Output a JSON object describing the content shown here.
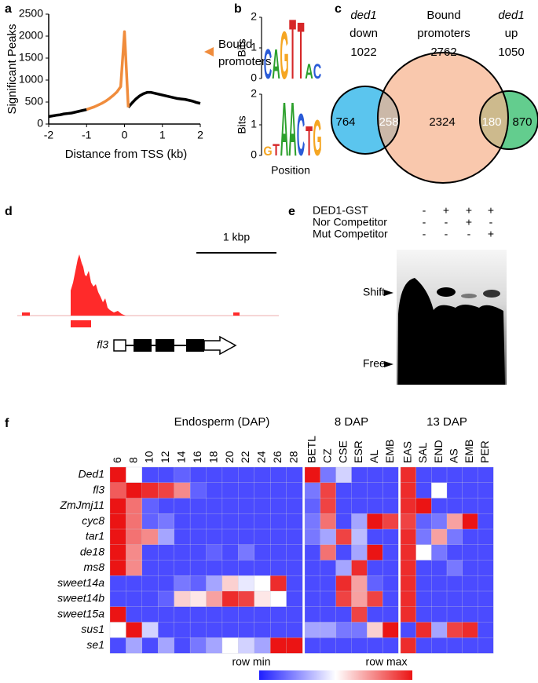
{
  "panel_labels": [
    "a",
    "b",
    "c",
    "d",
    "e",
    "f"
  ],
  "chart_data": [
    {
      "type": "line",
      "ylabel": "Significant Peaks",
      "xlabel": "Distance from TSS (kb)",
      "annotation": [
        "Bound",
        "promoters"
      ],
      "x": [
        -2.0,
        -1.9,
        -1.8,
        -1.7,
        -1.6,
        -1.5,
        -1.4,
        -1.3,
        -1.2,
        -1.1,
        -1.0,
        -0.9,
        -0.8,
        -0.7,
        -0.6,
        -0.5,
        -0.4,
        -0.3,
        -0.2,
        -0.1,
        0.0,
        0.1,
        0.2,
        0.3,
        0.4,
        0.5,
        0.6,
        0.7,
        0.8,
        0.9,
        1.0,
        1.1,
        1.2,
        1.3,
        1.4,
        1.5,
        1.6,
        1.7,
        1.8,
        1.9,
        2.0
      ],
      "series": [
        {
          "color": "#000000",
          "values": [
            170,
            185,
            200,
            210,
            230,
            240,
            250,
            270,
            290,
            310,
            330,
            null,
            null,
            null,
            null,
            null,
            null,
            null,
            null,
            null,
            null,
            380,
            480,
            570,
            640,
            690,
            720,
            720,
            700,
            680,
            660,
            640,
            620,
            600,
            580,
            570,
            560,
            540,
            520,
            490,
            470
          ]
        },
        {
          "color": "#f08c3c",
          "values": [
            null,
            null,
            null,
            null,
            null,
            null,
            null,
            null,
            null,
            null,
            330,
            360,
            390,
            430,
            470,
            520,
            580,
            650,
            730,
            850,
            2100,
            380,
            null,
            null,
            null,
            null,
            null,
            null,
            null,
            null,
            null,
            null,
            null,
            null,
            null,
            null,
            null,
            null,
            null,
            null,
            null
          ]
        }
      ],
      "xlim": [
        -2,
        2
      ],
      "xticks": [
        -2,
        -1,
        0,
        1,
        2
      ],
      "ylim": [
        0,
        2500
      ],
      "yticks": [
        0,
        500,
        1000,
        1500,
        2000,
        2500
      ]
    },
    {
      "type": "logo",
      "ylabel": "Bits",
      "xlabel": "Position",
      "ylim": [
        0,
        2
      ],
      "yticks": [
        0,
        1,
        2
      ],
      "colors": {
        "A": "#2ca02c",
        "C": "#2a5bd7",
        "G": "#f5a623",
        "T": "#d62728"
      },
      "logos": [
        {
          "letters": [
            "C",
            "A",
            "G",
            "T",
            "T",
            "A",
            "C"
          ],
          "bits": [
            1.0,
            1.0,
            1.6,
            2.0,
            1.9,
            0.5,
            0.5
          ]
        },
        {
          "letters": [
            "G",
            "T",
            "A",
            "A",
            "C",
            "T",
            "G"
          ],
          "bits": [
            0.3,
            0.4,
            1.8,
            1.8,
            1.4,
            1.0,
            1.2
          ]
        }
      ]
    },
    {
      "type": "venn",
      "sets": [
        {
          "label": [
            "ded1",
            "down"
          ],
          "label_italic": true,
          "size": 1022,
          "color": "#5bc5ee"
        },
        {
          "label": [
            "Bound",
            "promoters"
          ],
          "label_italic": false,
          "size": 2762,
          "color": "#f6b38e"
        },
        {
          "label": [
            "ded1",
            "up"
          ],
          "label_italic": true,
          "size": 1050,
          "color": "#63cd8e"
        }
      ],
      "regions": [
        764,
        258,
        2324,
        180,
        870
      ]
    },
    {
      "type": "heatmap",
      "rows": [
        "Ded1",
        "fl3",
        "ZmJmj11",
        "cyc8",
        "tar1",
        "de18",
        "ms8",
        "sweet14a",
        "sweet14b",
        "sweet15a",
        "sus1",
        "se1"
      ],
      "colorbar_labels": [
        "row min",
        "row max"
      ],
      "groups": [
        {
          "title": "Endosperm (DAP)",
          "columns": [
            "6",
            "8",
            "10",
            "12",
            "14",
            "16",
            "18",
            "20",
            "22",
            "24",
            "26",
            "28"
          ],
          "values": [
            [
              1,
              0.5,
              0.1,
              0.1,
              0.15,
              0.1,
              0.1,
              0.1,
              0.1,
              0.1,
              0.1,
              0.1
            ],
            [
              0.85,
              1,
              0.95,
              0.9,
              0.75,
              0.15,
              0.1,
              0.1,
              0.1,
              0.1,
              0.1,
              0.1
            ],
            [
              1,
              0.8,
              0.15,
              0.1,
              0.1,
              0.1,
              0.1,
              0.1,
              0.1,
              0.1,
              0.1,
              0.1
            ],
            [
              1,
              0.8,
              0.15,
              0.2,
              0.1,
              0.1,
              0.1,
              0.1,
              0.1,
              0.1,
              0.1,
              0.1
            ],
            [
              1,
              0.8,
              0.75,
              0.3,
              0.1,
              0.1,
              0.1,
              0.1,
              0.1,
              0.1,
              0.1,
              0.1
            ],
            [
              1,
              0.75,
              0.1,
              0.1,
              0.1,
              0.1,
              0.15,
              0.1,
              0.2,
              0.1,
              0.1,
              0.1
            ],
            [
              1,
              0.75,
              0.1,
              0.1,
              0.1,
              0.1,
              0.1,
              0.1,
              0.1,
              0.1,
              0.1,
              0.1
            ],
            [
              0.1,
              0.1,
              0.1,
              0.1,
              0.2,
              0.15,
              0.3,
              0.6,
              0.45,
              0.5,
              0.95,
              0.1
            ],
            [
              0.1,
              0.1,
              0.1,
              0.15,
              0.6,
              0.55,
              0.7,
              0.95,
              0.9,
              0.55,
              0.5,
              0.1
            ],
            [
              1,
              0.1,
              0.1,
              0.1,
              0.1,
              0.1,
              0.1,
              0.1,
              0.1,
              0.1,
              0.1,
              0.1
            ],
            [
              0.5,
              1,
              0.4,
              0.1,
              0.1,
              0.1,
              0.1,
              0.1,
              0.1,
              0.1,
              0.1,
              0.1
            ],
            [
              0.1,
              0.3,
              0.1,
              0.3,
              0.1,
              0.2,
              0.3,
              0.5,
              0.4,
              0.3,
              1,
              1
            ]
          ]
        },
        {
          "title": "8 DAP",
          "columns": [
            "BETL",
            "CZ",
            "CSE",
            "ESR",
            "AL",
            "EMB"
          ],
          "values": [
            [
              1,
              0.2,
              0.4,
              0.1,
              0.1,
              0.1
            ],
            [
              0.2,
              0.9,
              0.1,
              0.1,
              0.1,
              0.1
            ],
            [
              0.15,
              0.9,
              0.1,
              0.1,
              0.1,
              0.1
            ],
            [
              0.2,
              0.8,
              0.1,
              0.3,
              1,
              0.9
            ],
            [
              0.2,
              0.3,
              0.9,
              0.35,
              0.1,
              0.1
            ],
            [
              0.1,
              0.8,
              0.1,
              0.3,
              1,
              0.1
            ],
            [
              0.1,
              0.1,
              0.3,
              0.95,
              0.1,
              0.1
            ],
            [
              0.1,
              0.1,
              0.95,
              0.7,
              0.15,
              0.1
            ],
            [
              0.1,
              0.1,
              0.9,
              0.7,
              0.9,
              0.1
            ],
            [
              0.1,
              0.1,
              0.1,
              0.9,
              0.1,
              0.1
            ],
            [
              0.3,
              0.3,
              0.2,
              0.2,
              0.6,
              1
            ],
            [
              0.1,
              0.1,
              0.1,
              0.1,
              0.1,
              0.1
            ]
          ]
        },
        {
          "title": "13 DAP",
          "columns": [
            "EAS",
            "SAL",
            "END",
            "AS",
            "EMB",
            "PER"
          ],
          "values": [
            [
              0.95,
              0.1,
              0.1,
              0.1,
              0.1,
              0.1
            ],
            [
              0.95,
              0.1,
              0.5,
              0.1,
              0.1,
              0.1
            ],
            [
              0.95,
              1,
              0.1,
              0.1,
              0.1,
              0.1
            ],
            [
              0.9,
              0.15,
              0.2,
              0.7,
              1,
              0.1
            ],
            [
              0.95,
              0.2,
              0.7,
              0.2,
              0.1,
              0.1
            ],
            [
              0.95,
              0.5,
              0.2,
              0.1,
              0.1,
              0.1
            ],
            [
              0.95,
              0.1,
              0.1,
              0.2,
              0.1,
              0.1
            ],
            [
              0.95,
              0.1,
              0.1,
              0.1,
              0.1,
              0.1
            ],
            [
              0.95,
              0.1,
              0.1,
              0.1,
              0.1,
              0.1
            ],
            [
              0.95,
              0.1,
              0.1,
              0.1,
              0.1,
              0.1
            ],
            [
              0.1,
              0.95,
              0.3,
              0.9,
              0.95,
              0.1
            ],
            [
              0.95,
              0.1,
              0.1,
              0.1,
              0.1,
              0.1
            ]
          ]
        }
      ]
    }
  ],
  "track": {
    "scale_label": "1 kbp",
    "gene": "fl3"
  },
  "gel": {
    "rows": [
      {
        "label": "DED1-GST",
        "lanes": [
          "-",
          "+",
          "+",
          "+"
        ]
      },
      {
        "label": "Nor Competitor",
        "lanes": [
          "-",
          "-",
          "+",
          "-"
        ]
      },
      {
        "label": "Mut Competitor",
        "lanes": [
          "-",
          "-",
          "-",
          "+"
        ]
      }
    ],
    "bands": [
      "Shift",
      "Free"
    ]
  }
}
